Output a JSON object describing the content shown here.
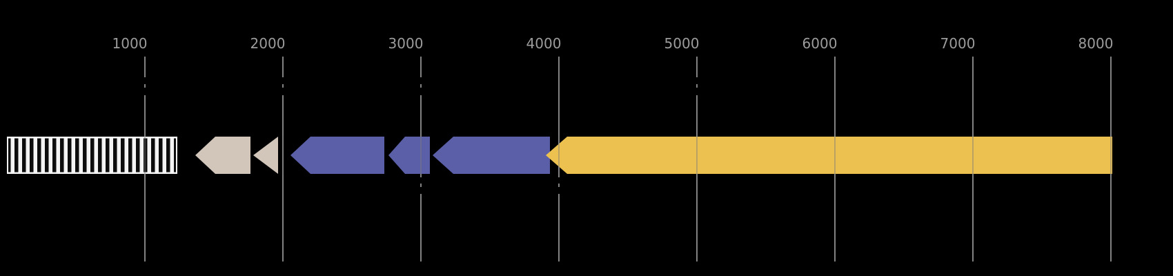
{
  "figure": {
    "background_color": "#000000",
    "description": "Linear genome annotation map with left-pointing gene arrows over a ruler from 0 to ~8400 bp"
  },
  "chart_data": {
    "type": "gene-feature-map",
    "title": "",
    "xlabel": "",
    "ylabel": "",
    "axis": {
      "orientation": "horizontal-top-labels",
      "domain": [
        0,
        8450
      ],
      "gridlines": true,
      "gridline_color": "#828282",
      "tick_label_color": "#9c9c9c",
      "ticks": [
        {
          "value": 1000,
          "label": "1000",
          "dash_upper": true,
          "dash_lower": false
        },
        {
          "value": 2000,
          "label": "2000",
          "dash_upper": true,
          "dash_lower": false
        },
        {
          "value": 3000,
          "label": "3000",
          "dash_upper": true,
          "dash_lower": true
        },
        {
          "value": 4000,
          "label": "4000",
          "dash_upper": false,
          "dash_lower": true
        },
        {
          "value": 5000,
          "label": "5000",
          "dash_upper": true,
          "dash_lower": false
        },
        {
          "value": 6000,
          "label": "6000",
          "dash_upper": false,
          "dash_lower": false
        },
        {
          "value": 7000,
          "label": "7000",
          "dash_upper": false,
          "dash_lower": false
        },
        {
          "value": 8000,
          "label": "8000",
          "dash_upper": false,
          "dash_lower": false
        }
      ]
    },
    "features": [
      {
        "name": "hatched-box-feature",
        "start": 0,
        "end": 1235,
        "strand": 0,
        "shape": "rect-hatched",
        "face_color": "#f4f4f4",
        "stripe_color": "#0d0d0d"
      },
      {
        "name": "beige-arrow-feature",
        "start": 1365,
        "end": 1765,
        "strand": -1,
        "shape": "arrow",
        "head_length": 145,
        "face_color": "#d2c6ba"
      },
      {
        "name": "beige-triangle-feature",
        "start": 1785,
        "end": 1965,
        "strand": -1,
        "shape": "triangle",
        "face_color": "#d2c6ba"
      },
      {
        "name": "blue-arrow-feature-1",
        "start": 2055,
        "end": 2735,
        "strand": -1,
        "shape": "arrow",
        "head_length": 145,
        "face_color": "#5b5fa8"
      },
      {
        "name": "blue-arrow-feature-2",
        "start": 2765,
        "end": 3065,
        "strand": -1,
        "shape": "arrow",
        "head_length": 120,
        "face_color": "#5b5fa8"
      },
      {
        "name": "blue-arrow-feature-3",
        "start": 3085,
        "end": 3935,
        "strand": -1,
        "shape": "arrow",
        "head_length": 150,
        "face_color": "#5b5fa8"
      },
      {
        "name": "yellow-arrow-feature",
        "start": 3905,
        "end": 8010,
        "strand": -1,
        "shape": "arrow",
        "head_length": 155,
        "face_color": "#ecc150"
      }
    ]
  }
}
